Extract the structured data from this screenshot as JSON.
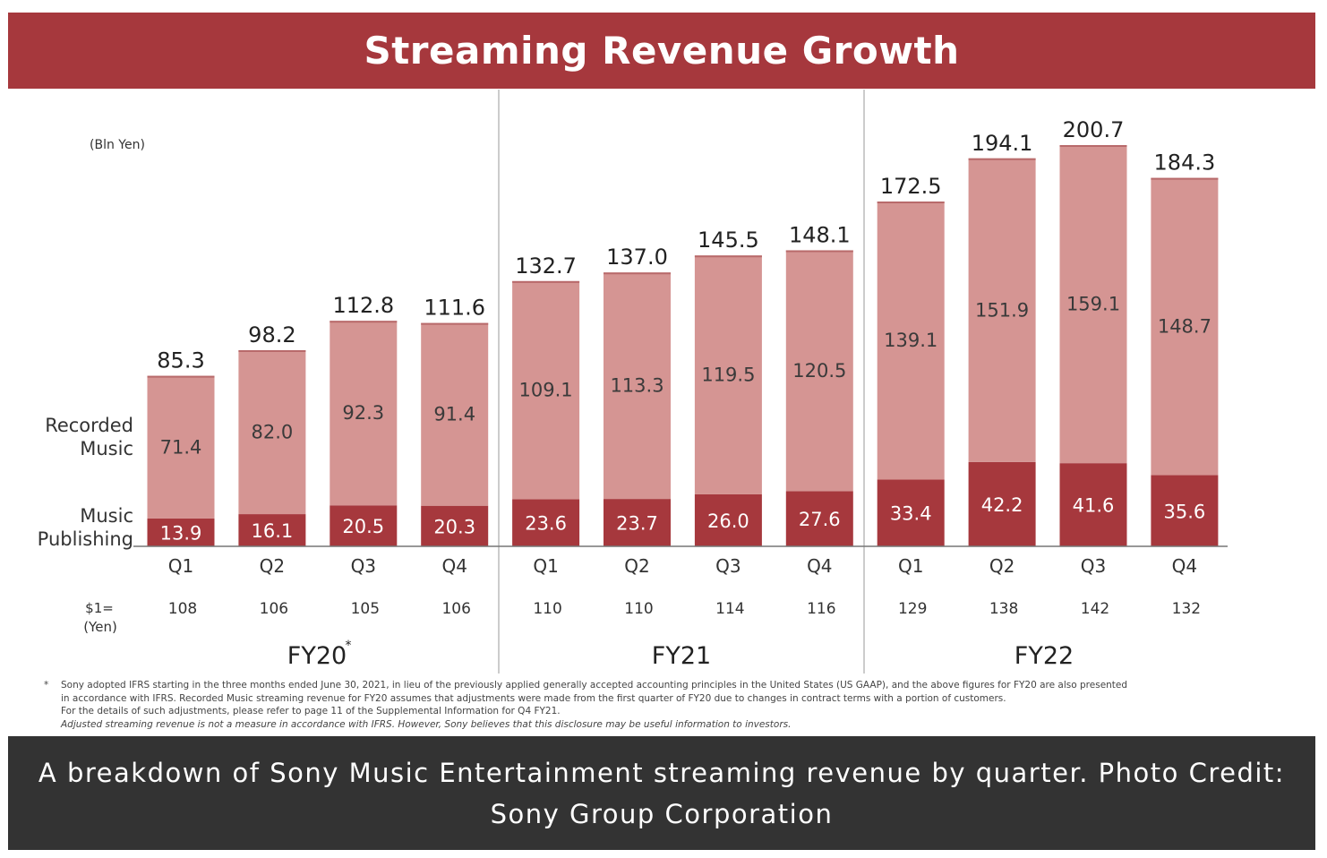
{
  "title": "Streaming Revenue Growth",
  "unit_label": "(Bln Yen)",
  "caption": "A breakdown of Sony Music Entertainment streaming revenue by quarter. Photo Credit: Sony Group Corporation",
  "colors": {
    "banner": "#a6383d",
    "recorded_music": "#d59593",
    "music_publishing": "#a6383d",
    "caption_bg": "#333333"
  },
  "chart_data": {
    "type": "bar",
    "stacked": true,
    "title": "Streaming Revenue Growth",
    "ylabel": "(Bln Yen)",
    "ylim": [
      0,
      220
    ],
    "categories": [
      "Q1",
      "Q2",
      "Q3",
      "Q4",
      "Q1",
      "Q2",
      "Q3",
      "Q4",
      "Q1",
      "Q2",
      "Q3",
      "Q4"
    ],
    "groups": [
      {
        "label": "FY20",
        "superscript": "*",
        "start": 0,
        "end": 3
      },
      {
        "label": "FY21",
        "superscript": "",
        "start": 4,
        "end": 7
      },
      {
        "label": "FY22",
        "superscript": "",
        "start": 8,
        "end": 11
      }
    ],
    "series": [
      {
        "name": "Music Publishing",
        "label_lines": [
          "Music",
          "Publishing"
        ],
        "color": "#a6383d",
        "values": [
          13.9,
          16.1,
          20.5,
          20.3,
          23.6,
          23.7,
          26.0,
          27.6,
          33.4,
          42.2,
          41.6,
          35.6
        ]
      },
      {
        "name": "Recorded Music",
        "label_lines": [
          "Recorded",
          "Music"
        ],
        "color": "#d59593",
        "values": [
          71.4,
          82.0,
          92.3,
          91.4,
          109.1,
          113.3,
          119.5,
          120.5,
          139.1,
          151.9,
          159.1,
          148.7
        ]
      }
    ],
    "totals": [
      85.3,
      98.2,
      112.8,
      111.6,
      132.7,
      137.0,
      145.5,
      148.1,
      172.5,
      194.1,
      200.7,
      184.3
    ],
    "fx_label": [
      "$1=",
      "(Yen)"
    ],
    "fx_rates": [
      108,
      106,
      105,
      106,
      110,
      110,
      114,
      116,
      129,
      138,
      142,
      132
    ]
  },
  "footnote": {
    "mark": "*",
    "lines": [
      "Sony adopted IFRS starting in the three months ended June 30, 2021, in lieu of the previously applied generally accepted accounting principles in the United States (US GAAP), and the above figures for FY20 are also presented",
      "in accordance with IFRS. Recorded Music streaming revenue for FY20 assumes that adjustments were made from the first quarter of FY20 due to changes in contract terms with a portion of customers.",
      "For the details of such adjustments, please refer to page 11 of the Supplemental Information for Q4 FY21.",
      "Adjusted streaming revenue is not a measure in accordance with IFRS. However, Sony believes that this disclosure may be useful information to investors."
    ]
  }
}
